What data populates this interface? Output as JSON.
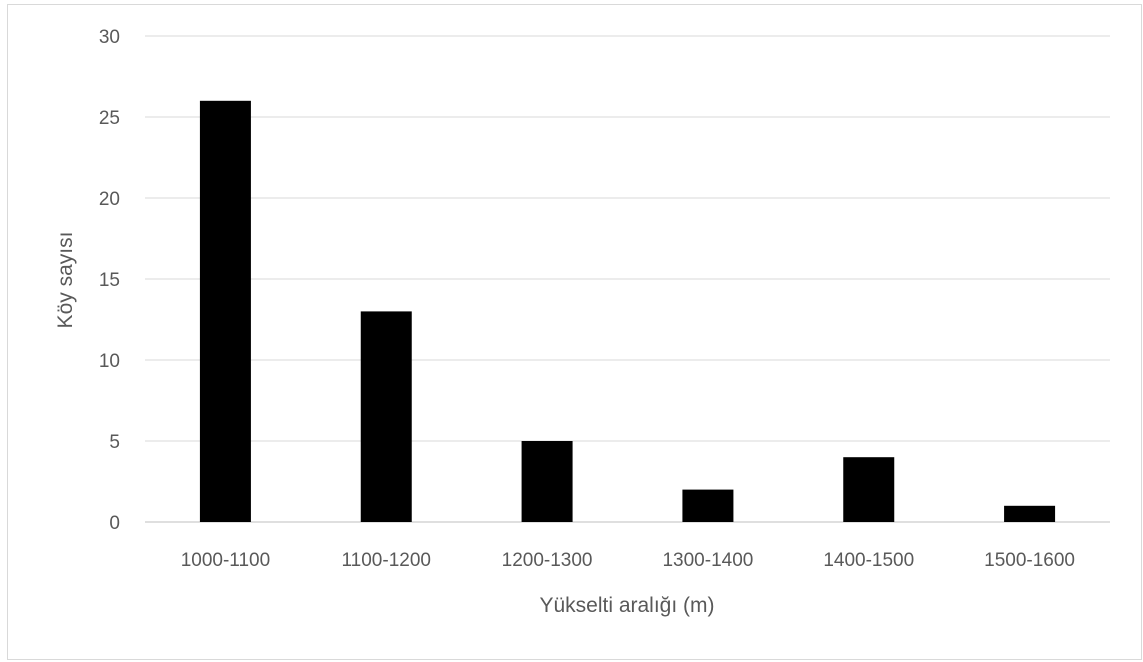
{
  "chart_data": {
    "type": "bar",
    "title": "",
    "categories": [
      "1000-1100",
      "1100-1200",
      "1200-1300",
      "1300-1400",
      "1400-1500",
      "1500-1600"
    ],
    "values": [
      26,
      13,
      5,
      2,
      4,
      1
    ],
    "xlabel": "Yükselti aralığı (m)",
    "ylabel": "Köy sayısı",
    "ylim": [
      0,
      30
    ],
    "yticks": [
      "0",
      "5",
      "10",
      "15",
      "20",
      "25",
      "30"
    ],
    "bar_color": "#000000",
    "grid": true,
    "legend": "none"
  }
}
